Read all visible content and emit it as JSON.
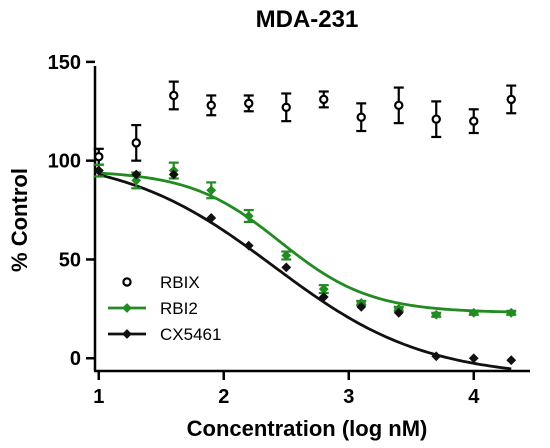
{
  "chart_data": {
    "type": "scatter",
    "title": "MDA-231",
    "xlabel": "Concentration (log nM)",
    "ylabel": "% Control",
    "xlim": [
      0.97,
      4.45
    ],
    "ylim": [
      -10,
      155
    ],
    "xticks": [
      1,
      2,
      3,
      4
    ],
    "xtick_labels": [
      "1",
      "2",
      "3",
      "4"
    ],
    "yticks": [
      0,
      50,
      100,
      150
    ],
    "ytick_labels": [
      "0",
      "50",
      "100",
      "150"
    ],
    "grid": false,
    "legend_position": "bottom-left",
    "series": [
      {
        "name": "RBIX",
        "color": "#000000",
        "marker": "open-circle",
        "fit_curve": false,
        "x": [
          1.0,
          1.3,
          1.6,
          1.9,
          2.2,
          2.5,
          2.8,
          3.1,
          3.4,
          3.7,
          4.0,
          4.3
        ],
        "y": [
          102,
          109,
          133,
          128,
          129,
          127,
          131,
          122,
          128,
          121,
          120,
          131
        ],
        "err": [
          4,
          9,
          7,
          5,
          4,
          7,
          4,
          7,
          9,
          9,
          6,
          7
        ]
      },
      {
        "name": "RBI2",
        "color": "#228b22",
        "marker": "filled-diamond",
        "fit_curve": true,
        "curve": {
          "top": 95,
          "bottom": 23,
          "logEC50": 2.45,
          "hill": 1.2
        },
        "x": [
          1.0,
          1.3,
          1.6,
          1.9,
          2.2,
          2.5,
          2.8,
          3.1,
          3.4,
          3.7,
          4.0,
          4.3
        ],
        "y": [
          95,
          90,
          95,
          85,
          72,
          52,
          35,
          28,
          25,
          22,
          23,
          23
        ],
        "err": [
          3,
          4,
          4,
          4,
          3,
          2,
          2,
          1,
          1,
          1,
          1,
          1
        ]
      },
      {
        "name": "CX5461",
        "color": "#111111",
        "marker": "filled-diamond",
        "fit_curve": true,
        "curve": {
          "top": 103,
          "bottom": -10,
          "logEC50": 2.4,
          "hill": 0.72
        },
        "x": [
          1.0,
          1.3,
          1.6,
          1.9,
          2.2,
          2.5,
          2.8,
          3.1,
          3.4,
          3.7,
          4.0,
          4.3
        ],
        "y": [
          95,
          93,
          93,
          71,
          57,
          46,
          31,
          26,
          23,
          1,
          0,
          -1
        ],
        "err": [
          0,
          0,
          0,
          0,
          0,
          0,
          0,
          0,
          0,
          0,
          0,
          0
        ]
      }
    ]
  }
}
